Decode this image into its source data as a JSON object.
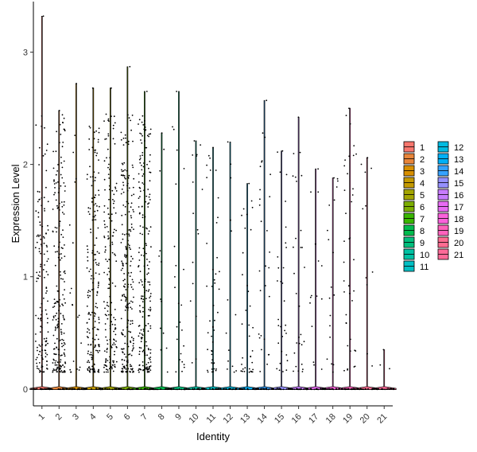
{
  "chart_data": {
    "type": "violin",
    "title": "",
    "xlabel": "Identity",
    "ylabel": "Expression Level",
    "ylim": [
      -0.15,
      3.45
    ],
    "yticks": [
      0,
      1,
      2,
      3
    ],
    "grid": false,
    "legend_position": "right",
    "categories": [
      "1",
      "2",
      "3",
      "4",
      "5",
      "6",
      "7",
      "8",
      "9",
      "10",
      "11",
      "12",
      "13",
      "14",
      "15",
      "16",
      "17",
      "18",
      "19",
      "20",
      "21"
    ],
    "colors": [
      "#F8766D",
      "#E8853A",
      "#D89000",
      "#C49A00",
      "#A3A500",
      "#7CAE00",
      "#39B600",
      "#00BB4E",
      "#00BF7D",
      "#00C1A3",
      "#00BFC4",
      "#00BAE0",
      "#00B0F6",
      "#35A2FF",
      "#9590FF",
      "#C77CFF",
      "#E76BF3",
      "#FA62DB",
      "#FF62BC",
      "#FF6C91",
      "#FF6A98"
    ],
    "max_values": [
      3.32,
      2.48,
      2.72,
      2.68,
      2.68,
      2.87,
      2.65,
      2.28,
      2.65,
      2.21,
      2.15,
      2.2,
      1.83,
      2.57,
      2.12,
      2.42,
      1.96,
      1.88,
      2.5,
      2.06,
      0.35
    ],
    "expressing_points": [
      140,
      210,
      20,
      190,
      170,
      230,
      210,
      12,
      24,
      15,
      45,
      14,
      35,
      28,
      30,
      28,
      14,
      18,
      38,
      10,
      2
    ],
    "point_range": {
      "low": 0.15,
      "high": 2.45
    }
  },
  "legend": {
    "col1": [
      "1",
      "2",
      "3",
      "4",
      "5",
      "6",
      "7",
      "8",
      "9",
      "10",
      "11"
    ],
    "col2": [
      "12",
      "13",
      "14",
      "15",
      "16",
      "17",
      "18",
      "19",
      "20",
      "21"
    ]
  }
}
